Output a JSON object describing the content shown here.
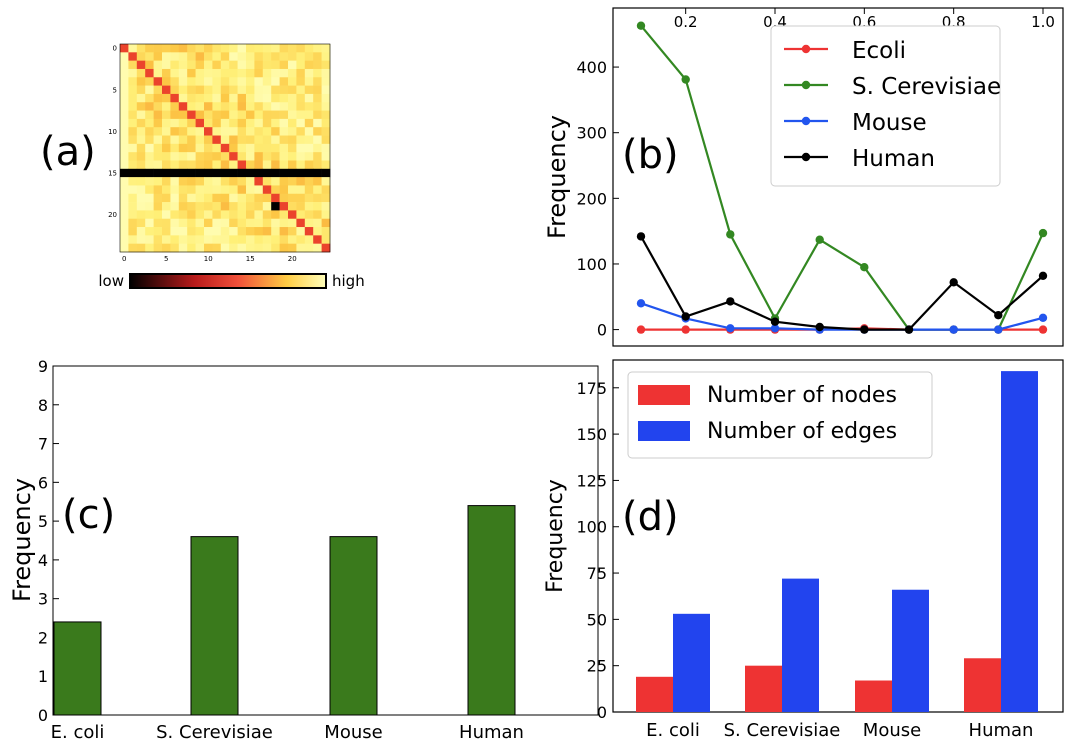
{
  "panels": {
    "a": {
      "label": "(a)"
    },
    "b": {
      "label": "(b)"
    },
    "c": {
      "label": "(c)"
    },
    "d": {
      "label": "(d)"
    }
  },
  "colors": {
    "ecoli": "#ee3333",
    "scerevisiae": "#338822",
    "mouse": "#2255ee",
    "human": "#000000",
    "c_bar": "#3a7a1c",
    "nodes": "#ee3333",
    "edges": "#2244ee",
    "heatmap_low": "#000000",
    "heatmap_mid": "#e8332a",
    "heatmap_high": "#ffff99"
  },
  "chart_data": [
    {
      "id": "a",
      "type": "heatmap",
      "xticks": [
        "0",
        "5",
        "10",
        "15",
        "20"
      ],
      "yticks": [
        "0",
        "5",
        "10",
        "15",
        "20"
      ],
      "size": 25,
      "colorbar": {
        "low_label": "low",
        "high_label": "high"
      },
      "black_row": 15,
      "black_cell": [
        19,
        18
      ]
    },
    {
      "id": "b",
      "type": "line",
      "x": [
        0.1,
        0.2,
        0.3,
        0.4,
        0.5,
        0.6,
        0.7,
        0.8,
        0.9,
        1.0
      ],
      "xticks": [
        "0.2",
        "0.4",
        "0.6",
        "0.8",
        "1.0"
      ],
      "xlim": [
        0.1,
        1.0
      ],
      "ylim": [
        -25,
        490
      ],
      "yticks": [
        "0",
        "100",
        "200",
        "300",
        "400"
      ],
      "ylabel": "Frequency",
      "legend_position": "top-right",
      "series": [
        {
          "name": "Ecoli",
          "color_key": "ecoli",
          "values": [
            0,
            0,
            0,
            0,
            0,
            2,
            0,
            0,
            0,
            0
          ]
        },
        {
          "name": "S. Cerevisiae",
          "color_key": "scerevisiae",
          "values": [
            463,
            381,
            145,
            17,
            137,
            95,
            0,
            0,
            0,
            147
          ]
        },
        {
          "name": "Mouse",
          "color_key": "mouse",
          "values": [
            40,
            17,
            2,
            2,
            0,
            0,
            0,
            0,
            0,
            18
          ]
        },
        {
          "name": "Human",
          "color_key": "human",
          "values": [
            142,
            20,
            43,
            12,
            4,
            0,
            0,
            72,
            22,
            82
          ]
        }
      ]
    },
    {
      "id": "c",
      "type": "bar",
      "categories": [
        "E. coli",
        "S. Cerevisiae",
        "Mouse",
        "Human"
      ],
      "values": [
        2.4,
        4.6,
        4.6,
        5.4
      ],
      "ylim": [
        0,
        9
      ],
      "yticks": [
        "0",
        "1",
        "2",
        "3",
        "4",
        "5",
        "6",
        "7",
        "8",
        "9"
      ],
      "ylabel": "Frequency"
    },
    {
      "id": "d",
      "type": "bar",
      "categories": [
        "E. coli",
        "S. Cerevisiae",
        "Mouse",
        "Human"
      ],
      "ylim": [
        0,
        190
      ],
      "yticks": [
        "0",
        "25",
        "50",
        "75",
        "100",
        "125",
        "150",
        "175"
      ],
      "ylabel": "Frequency",
      "legend_position": "top-left",
      "series": [
        {
          "name": "Number of nodes",
          "color_key": "nodes",
          "values": [
            19,
            25,
            17,
            29
          ]
        },
        {
          "name": "Number of edges",
          "color_key": "edges",
          "values": [
            53,
            72,
            66,
            184
          ]
        }
      ]
    }
  ]
}
